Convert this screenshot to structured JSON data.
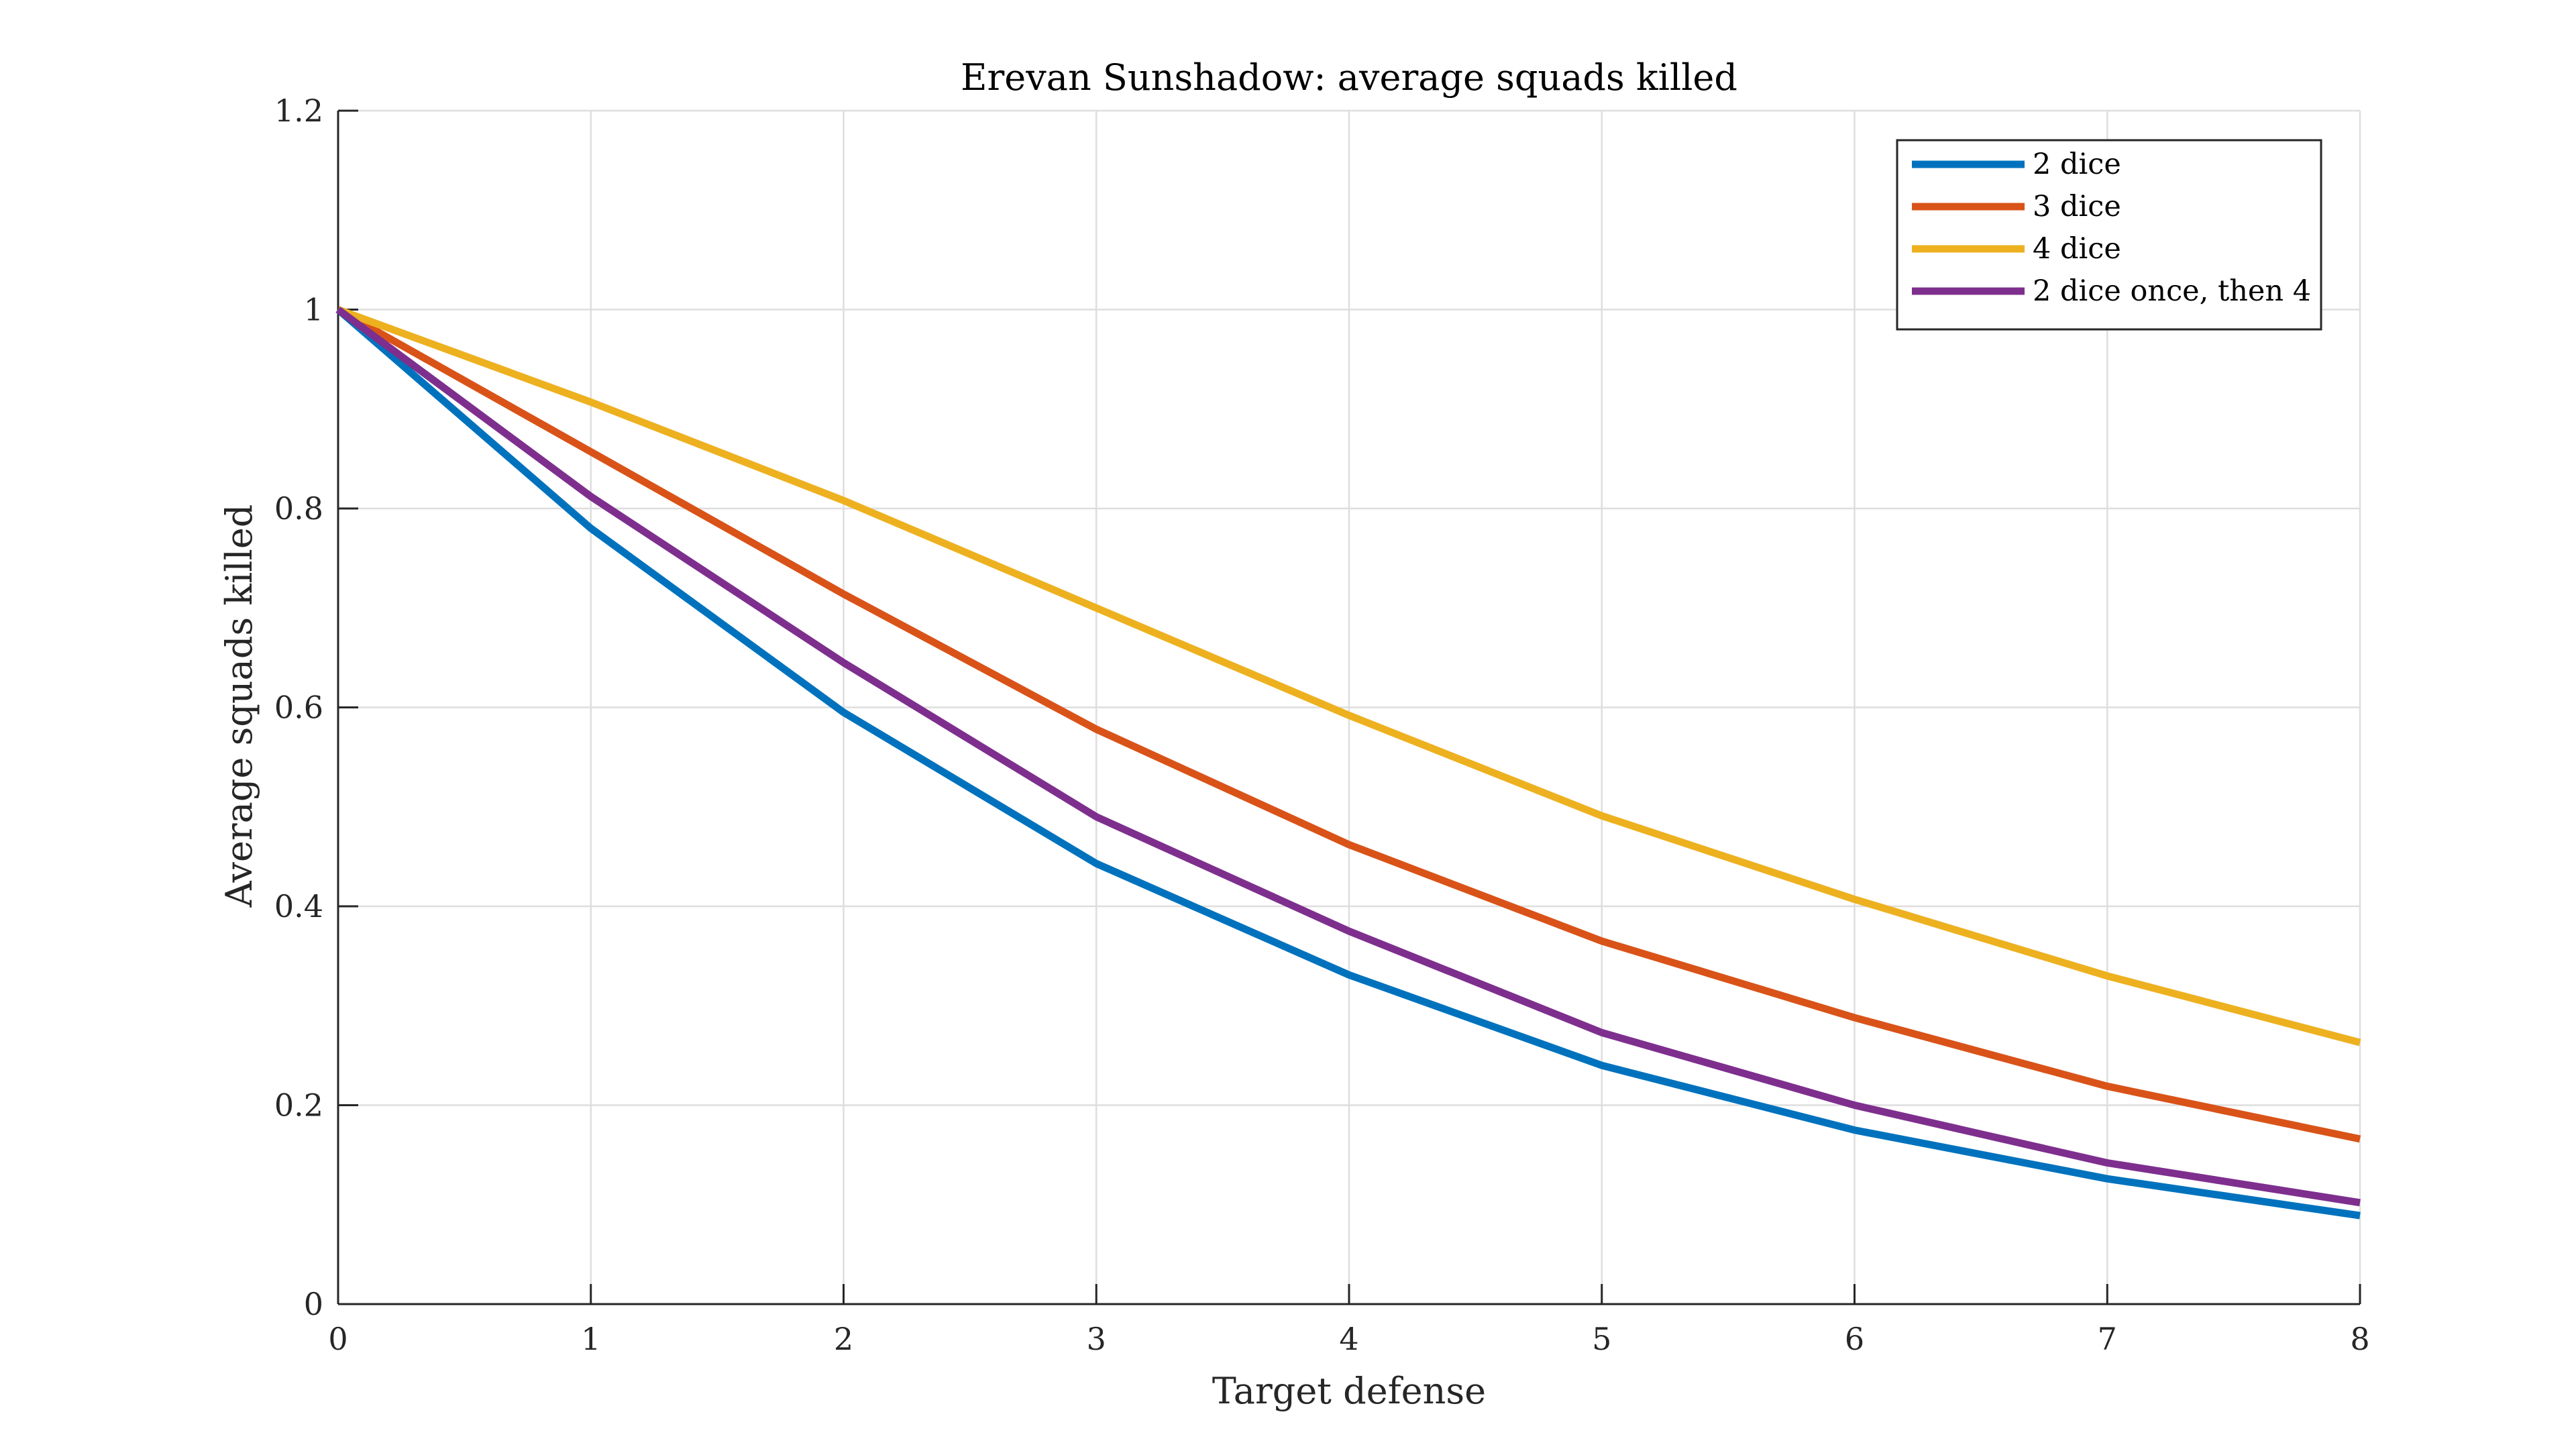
{
  "chart_data": {
    "type": "line",
    "title": "Erevan Sunshadow: average squads killed",
    "xlabel": "Target defense",
    "ylabel": "Average squads killed",
    "xlim": [
      0,
      8
    ],
    "ylim": [
      0,
      1.2
    ],
    "xticks": [
      0,
      1,
      2,
      3,
      4,
      5,
      6,
      7,
      8
    ],
    "xtick_labels": [
      "0",
      "1",
      "2",
      "3",
      "4",
      "5",
      "6",
      "7",
      "8"
    ],
    "yticks": [
      0,
      0.2,
      0.4,
      0.6,
      0.8,
      1,
      1.2
    ],
    "ytick_labels": [
      "0",
      "0.2",
      "0.4",
      "0.6",
      "0.8",
      "1",
      "1.2"
    ],
    "grid": true,
    "legend_position": "top-right",
    "x": [
      0,
      1,
      2,
      3,
      4,
      5,
      6,
      7,
      8
    ],
    "series": [
      {
        "name": "2 dice",
        "color": "#0072BD",
        "values": [
          1.0,
          0.78,
          0.595,
          0.443,
          0.331,
          0.24,
          0.175,
          0.126,
          0.089
        ]
      },
      {
        "name": "3 dice",
        "color": "#D95319",
        "values": [
          1.0,
          0.857,
          0.714,
          0.578,
          0.462,
          0.365,
          0.288,
          0.219,
          0.166
        ]
      },
      {
        "name": "4 dice",
        "color": "#EDB120",
        "values": [
          1.0,
          0.907,
          0.808,
          0.7,
          0.592,
          0.491,
          0.407,
          0.33,
          0.263
        ]
      },
      {
        "name": "2 dice once, then 4",
        "color": "#7E2F8E",
        "values": [
          1.0,
          0.812,
          0.645,
          0.49,
          0.375,
          0.273,
          0.2,
          0.142,
          0.102
        ]
      }
    ]
  }
}
